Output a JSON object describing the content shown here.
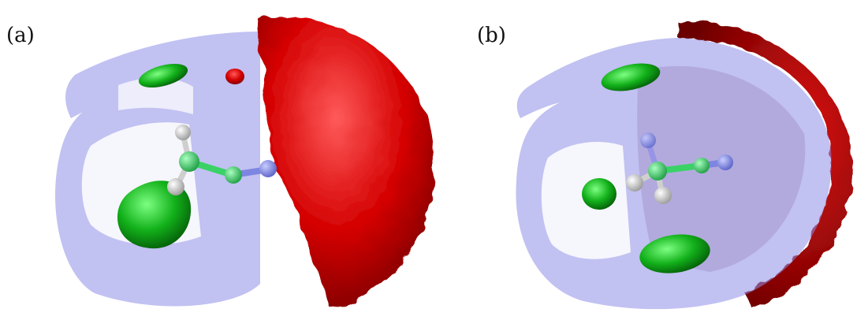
{
  "figure": {
    "panels": [
      {
        "label": "(a)"
      },
      {
        "label": "(b)"
      }
    ],
    "colors": {
      "shell": "#8e8ee8",
      "red_surface": "#d40000",
      "green_lobe": "#12b01a",
      "carbon": "#3ad266",
      "hydrogen": "#d8d8d8",
      "nitrogen": "#6e78e0"
    }
  }
}
